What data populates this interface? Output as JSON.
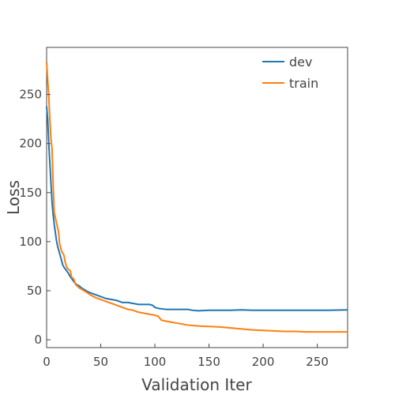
{
  "chart_data": {
    "type": "line",
    "xlabel": "Validation Iter",
    "ylabel": "Loss",
    "xlim": [
      0,
      278
    ],
    "ylim": [
      -8,
      298
    ],
    "x_ticks": [
      0,
      50,
      100,
      150,
      200,
      250
    ],
    "y_ticks": [
      0,
      50,
      100,
      150,
      200,
      250
    ],
    "grid": false,
    "legend_position": "top-right",
    "series": [
      {
        "name": "dev",
        "color": "#1f77b4",
        "points": [
          [
            0,
            238
          ],
          [
            1,
            225
          ],
          [
            2,
            200
          ],
          [
            3,
            180
          ],
          [
            4,
            160
          ],
          [
            5,
            140
          ],
          [
            6,
            128
          ],
          [
            7,
            118
          ],
          [
            8,
            110
          ],
          [
            9,
            102
          ],
          [
            10,
            96
          ],
          [
            11,
            92
          ],
          [
            12,
            88
          ],
          [
            13,
            84
          ],
          [
            14,
            80
          ],
          [
            15,
            76
          ],
          [
            16,
            74
          ],
          [
            18,
            71
          ],
          [
            20,
            68
          ],
          [
            22,
            64
          ],
          [
            24,
            61
          ],
          [
            26,
            58
          ],
          [
            28,
            56
          ],
          [
            30,
            55
          ],
          [
            32,
            53
          ],
          [
            35,
            51
          ],
          [
            38,
            49
          ],
          [
            40,
            48
          ],
          [
            45,
            46
          ],
          [
            50,
            44
          ],
          [
            55,
            42
          ],
          [
            60,
            41
          ],
          [
            65,
            40
          ],
          [
            70,
            38
          ],
          [
            75,
            38
          ],
          [
            80,
            37
          ],
          [
            85,
            36
          ],
          [
            90,
            36
          ],
          [
            95,
            36
          ],
          [
            98,
            35
          ],
          [
            100,
            33
          ],
          [
            103,
            32
          ],
          [
            110,
            31
          ],
          [
            120,
            31
          ],
          [
            130,
            31
          ],
          [
            135,
            30
          ],
          [
            140,
            29.5
          ],
          [
            150,
            30
          ],
          [
            160,
            30
          ],
          [
            170,
            30
          ],
          [
            180,
            30.5
          ],
          [
            190,
            30
          ],
          [
            200,
            30
          ],
          [
            220,
            30
          ],
          [
            240,
            30
          ],
          [
            260,
            30
          ],
          [
            278,
            30.5
          ]
        ]
      },
      {
        "name": "train",
        "color": "#ff7f0e",
        "points": [
          [
            0,
            283
          ],
          [
            1,
            265
          ],
          [
            2,
            248
          ],
          [
            3,
            225
          ],
          [
            4,
            205
          ],
          [
            5,
            195
          ],
          [
            6,
            160
          ],
          [
            7,
            130
          ],
          [
            8,
            125
          ],
          [
            9,
            120
          ],
          [
            10,
            115
          ],
          [
            11,
            110
          ],
          [
            12,
            98
          ],
          [
            13,
            94
          ],
          [
            14,
            90
          ],
          [
            15,
            88
          ],
          [
            16,
            86
          ],
          [
            17,
            80
          ],
          [
            18,
            76
          ],
          [
            19,
            73
          ],
          [
            20,
            72
          ],
          [
            22,
            70
          ],
          [
            23,
            64
          ],
          [
            25,
            62
          ],
          [
            27,
            56
          ],
          [
            30,
            53
          ],
          [
            33,
            51
          ],
          [
            36,
            49
          ],
          [
            40,
            46
          ],
          [
            45,
            43
          ],
          [
            50,
            41
          ],
          [
            55,
            39
          ],
          [
            60,
            37
          ],
          [
            65,
            35
          ],
          [
            70,
            33
          ],
          [
            75,
            31
          ],
          [
            80,
            30
          ],
          [
            85,
            28
          ],
          [
            90,
            27
          ],
          [
            95,
            26
          ],
          [
            100,
            25
          ],
          [
            103,
            24
          ],
          [
            106,
            20
          ],
          [
            110,
            19
          ],
          [
            120,
            17
          ],
          [
            130,
            15
          ],
          [
            140,
            14
          ],
          [
            150,
            13.5
          ],
          [
            160,
            13
          ],
          [
            170,
            12
          ],
          [
            180,
            11
          ],
          [
            190,
            10
          ],
          [
            200,
            9.5
          ],
          [
            210,
            9
          ],
          [
            220,
            8.5
          ],
          [
            230,
            8.5
          ],
          [
            240,
            8
          ],
          [
            250,
            8
          ],
          [
            260,
            8
          ],
          [
            270,
            8
          ],
          [
            278,
            8
          ]
        ]
      }
    ]
  }
}
